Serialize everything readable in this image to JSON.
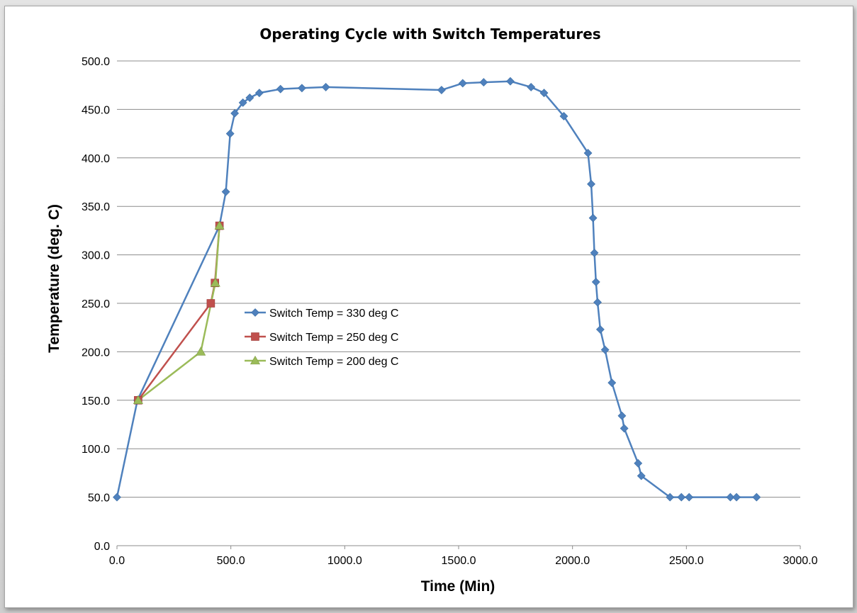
{
  "chart_data": {
    "type": "line",
    "title": "Operating Cycle with Switch Temperatures",
    "xlabel": "Time (Min)",
    "ylabel": "Temperature (deg. C)",
    "xlim": [
      0,
      3000
    ],
    "ylim": [
      0,
      500
    ],
    "x_ticks": [
      "0.0",
      "500.0",
      "1000.0",
      "1500.0",
      "2000.0",
      "2500.0",
      "3000.0"
    ],
    "y_ticks": [
      "0.0",
      "50.0",
      "100.0",
      "150.0",
      "200.0",
      "250.0",
      "300.0",
      "350.0",
      "400.0",
      "450.0",
      "500.0"
    ],
    "grid": "horizontal",
    "legend_position": "center-left",
    "series": [
      {
        "name": "Switch Temp = 330 deg C",
        "color": "#4f81bd",
        "marker": "diamond",
        "points": [
          [
            0,
            50
          ],
          [
            90,
            150
          ],
          [
            450,
            330
          ],
          [
            478,
            365
          ],
          [
            497,
            425
          ],
          [
            517,
            446
          ],
          [
            553,
            457
          ],
          [
            583,
            462
          ],
          [
            625,
            467
          ],
          [
            718,
            471
          ],
          [
            812,
            472
          ],
          [
            917,
            473
          ],
          [
            1425,
            470
          ],
          [
            1518,
            477
          ],
          [
            1610,
            478
          ],
          [
            1727,
            479
          ],
          [
            1818,
            473
          ],
          [
            1875,
            467
          ],
          [
            1962,
            443
          ],
          [
            2068,
            405
          ],
          [
            2082,
            373
          ],
          [
            2090,
            338
          ],
          [
            2096,
            302
          ],
          [
            2103,
            272
          ],
          [
            2110,
            251
          ],
          [
            2122,
            223
          ],
          [
            2143,
            202
          ],
          [
            2173,
            168
          ],
          [
            2217,
            134
          ],
          [
            2227,
            121
          ],
          [
            2288,
            85
          ],
          [
            2302,
            72
          ],
          [
            2428,
            50
          ],
          [
            2478,
            50
          ],
          [
            2512,
            50
          ],
          [
            2693,
            50
          ],
          [
            2720,
            50
          ],
          [
            2808,
            50
          ]
        ]
      },
      {
        "name": "Switch Temp = 250 deg C",
        "color": "#c0504d",
        "marker": "square",
        "points": [
          [
            93,
            150
          ],
          [
            412,
            250
          ],
          [
            430,
            271
          ],
          [
            450,
            330
          ]
        ]
      },
      {
        "name": "Switch Temp = 200 deg C",
        "color": "#9bbb59",
        "marker": "triangle",
        "points": [
          [
            93,
            150
          ],
          [
            368,
            200
          ],
          [
            432,
            271
          ],
          [
            450,
            330
          ]
        ]
      }
    ]
  }
}
